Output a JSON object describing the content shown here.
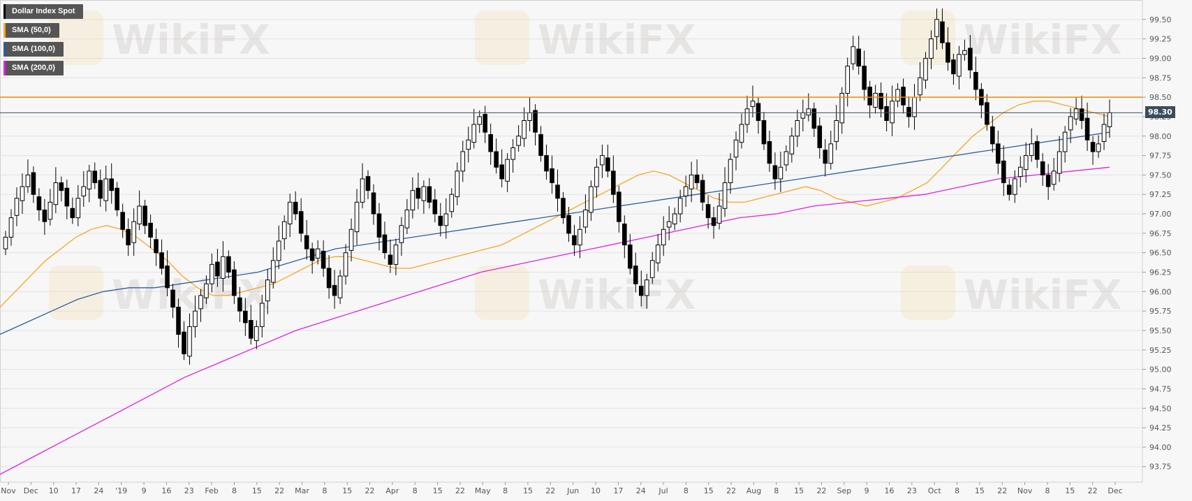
{
  "chart_data": {
    "type": "candlestick",
    "title": "Dollar Index Spot",
    "y_ticks": [
      "99.50",
      "99.25",
      "99.00",
      "98.75",
      "98.50",
      "98.25",
      "98.00",
      "97.75",
      "97.50",
      "97.25",
      "97.00",
      "96.75",
      "96.50",
      "96.25",
      "96.00",
      "95.75",
      "95.50",
      "95.25",
      "95.00",
      "94.75",
      "94.50",
      "94.25",
      "94.00",
      "93.75"
    ],
    "ylim": [
      93.55,
      99.75
    ],
    "x_ticks": [
      "Nov",
      "Dec",
      "10",
      "17",
      "24",
      "'19",
      "9",
      "16",
      "23",
      "Feb",
      "8",
      "15",
      "22",
      "Mar",
      "8",
      "15",
      "22",
      "Apr",
      "8",
      "15",
      "22",
      "May",
      "8",
      "15",
      "22",
      "Jun",
      "10",
      "17",
      "24",
      "Jul",
      "8",
      "15",
      "22",
      "Aug",
      "8",
      "15",
      "22",
      "Sep",
      "9",
      "16",
      "23",
      "Oct",
      "8",
      "15",
      "22",
      "Nov",
      "8",
      "15",
      "22",
      "Dec"
    ],
    "legend": [
      {
        "label": "Dollar Index Spot",
        "color": "#000000"
      },
      {
        "label": "SMA (50,0)",
        "color": "#f5a623"
      },
      {
        "label": "SMA (100,0)",
        "color": "#2c5f9e"
      },
      {
        "label": "SMA (200,0)",
        "color": "#e020e0"
      }
    ],
    "last_price": "98.30",
    "last_price_value": 98.3,
    "horizontal_line": {
      "value": 98.5,
      "color": "#f08a00"
    },
    "closes": [
      96.7,
      96.95,
      97.2,
      97.35,
      97.5,
      97.25,
      97.05,
      96.9,
      97.15,
      97.4,
      97.3,
      97.1,
      96.95,
      97.2,
      97.35,
      97.55,
      97.4,
      97.2,
      97.45,
      97.3,
      97.05,
      96.8,
      96.6,
      96.9,
      97.1,
      96.85,
      96.7,
      96.5,
      96.3,
      96.05,
      95.8,
      95.45,
      95.2,
      95.55,
      95.75,
      95.95,
      96.1,
      96.35,
      96.2,
      96.45,
      96.25,
      95.95,
      95.75,
      95.6,
      95.4,
      95.55,
      95.85,
      96.15,
      96.4,
      96.65,
      96.9,
      97.15,
      97.0,
      96.75,
      96.55,
      96.4,
      96.55,
      96.3,
      96.05,
      95.95,
      96.2,
      96.5,
      96.8,
      97.15,
      97.45,
      97.3,
      97.0,
      96.7,
      96.5,
      96.35,
      96.6,
      96.85,
      97.05,
      97.3,
      97.2,
      97.35,
      97.15,
      97.0,
      96.85,
      97.0,
      97.25,
      97.55,
      97.8,
      97.95,
      98.15,
      98.25,
      98.05,
      97.8,
      97.6,
      97.45,
      97.7,
      97.85,
      98.0,
      98.2,
      98.3,
      98.05,
      97.75,
      97.55,
      97.4,
      97.2,
      96.95,
      96.75,
      96.6,
      96.8,
      97.05,
      97.35,
      97.6,
      97.75,
      97.55,
      97.25,
      96.9,
      96.6,
      96.3,
      96.1,
      95.95,
      96.15,
      96.4,
      96.6,
      96.8,
      96.9,
      97.0,
      97.2,
      97.35,
      97.5,
      97.4,
      97.15,
      96.95,
      96.85,
      97.1,
      97.4,
      97.7,
      97.95,
      98.15,
      98.35,
      98.45,
      98.2,
      97.9,
      97.65,
      97.45,
      97.6,
      97.8,
      98.0,
      98.2,
      98.3,
      98.35,
      98.1,
      97.85,
      97.65,
      97.9,
      98.2,
      98.55,
      98.9,
      99.15,
      98.9,
      98.6,
      98.4,
      98.55,
      98.35,
      98.2,
      98.45,
      98.6,
      98.4,
      98.25,
      98.5,
      98.75,
      99.0,
      99.25,
      99.5,
      99.2,
      98.95,
      98.8,
      99.05,
      99.1,
      98.85,
      98.6,
      98.4,
      98.15,
      97.9,
      97.65,
      97.4,
      97.25,
      97.45,
      97.6,
      97.75,
      97.9,
      97.7,
      97.5,
      97.35,
      97.55,
      97.8,
      98.05,
      98.25,
      98.35,
      98.2,
      97.95,
      97.8,
      97.9,
      98.15,
      98.3
    ],
    "series": [
      {
        "name": "SMA (50,0)",
        "values": [
          95.8,
          96.0,
          96.2,
          96.4,
          96.55,
          96.7,
          96.8,
          96.85,
          96.8,
          96.7,
          96.55,
          96.4,
          96.2,
          96.05,
          95.95,
          95.95,
          96.0,
          96.05,
          96.1,
          96.2,
          96.3,
          96.4,
          96.45,
          96.45,
          96.4,
          96.35,
          96.3,
          96.3,
          96.35,
          96.4,
          96.45,
          96.5,
          96.55,
          96.6,
          96.7,
          96.8,
          96.9,
          97.0,
          97.1,
          97.2,
          97.3,
          97.4,
          97.5,
          97.55,
          97.5,
          97.4,
          97.3,
          97.2,
          97.15,
          97.15,
          97.2,
          97.25,
          97.3,
          97.35,
          97.3,
          97.2,
          97.15,
          97.1,
          97.15,
          97.2,
          97.3,
          97.4,
          97.6,
          97.8,
          98.0,
          98.15,
          98.3,
          98.4,
          98.45,
          98.45,
          98.4,
          98.35,
          98.3,
          98.25
        ]
      },
      {
        "name": "SMA (100,0)",
        "values": [
          95.45,
          95.6,
          95.75,
          95.9,
          96.0,
          96.05,
          96.05,
          96.1,
          96.15,
          96.2,
          96.25,
          96.35,
          96.45,
          96.55,
          96.6,
          96.65,
          96.7,
          96.75,
          96.8,
          96.85,
          96.9,
          96.95,
          97.0,
          97.05,
          97.1,
          97.15,
          97.2,
          97.25,
          97.3,
          97.35,
          97.4,
          97.45,
          97.5,
          97.55,
          97.6,
          97.65,
          97.7,
          97.75,
          97.8,
          97.85,
          97.9,
          97.95,
          98.0,
          98.05
        ]
      },
      {
        "name": "SMA (200,0)",
        "values": [
          93.65,
          93.9,
          94.15,
          94.4,
          94.65,
          94.9,
          95.1,
          95.3,
          95.5,
          95.65,
          95.8,
          95.95,
          96.1,
          96.25,
          96.35,
          96.45,
          96.55,
          96.65,
          96.75,
          96.85,
          96.95,
          97.0,
          97.1,
          97.15,
          97.2,
          97.25,
          97.35,
          97.45,
          97.5,
          97.55,
          97.6
        ]
      }
    ]
  },
  "watermark": "WikiFX"
}
